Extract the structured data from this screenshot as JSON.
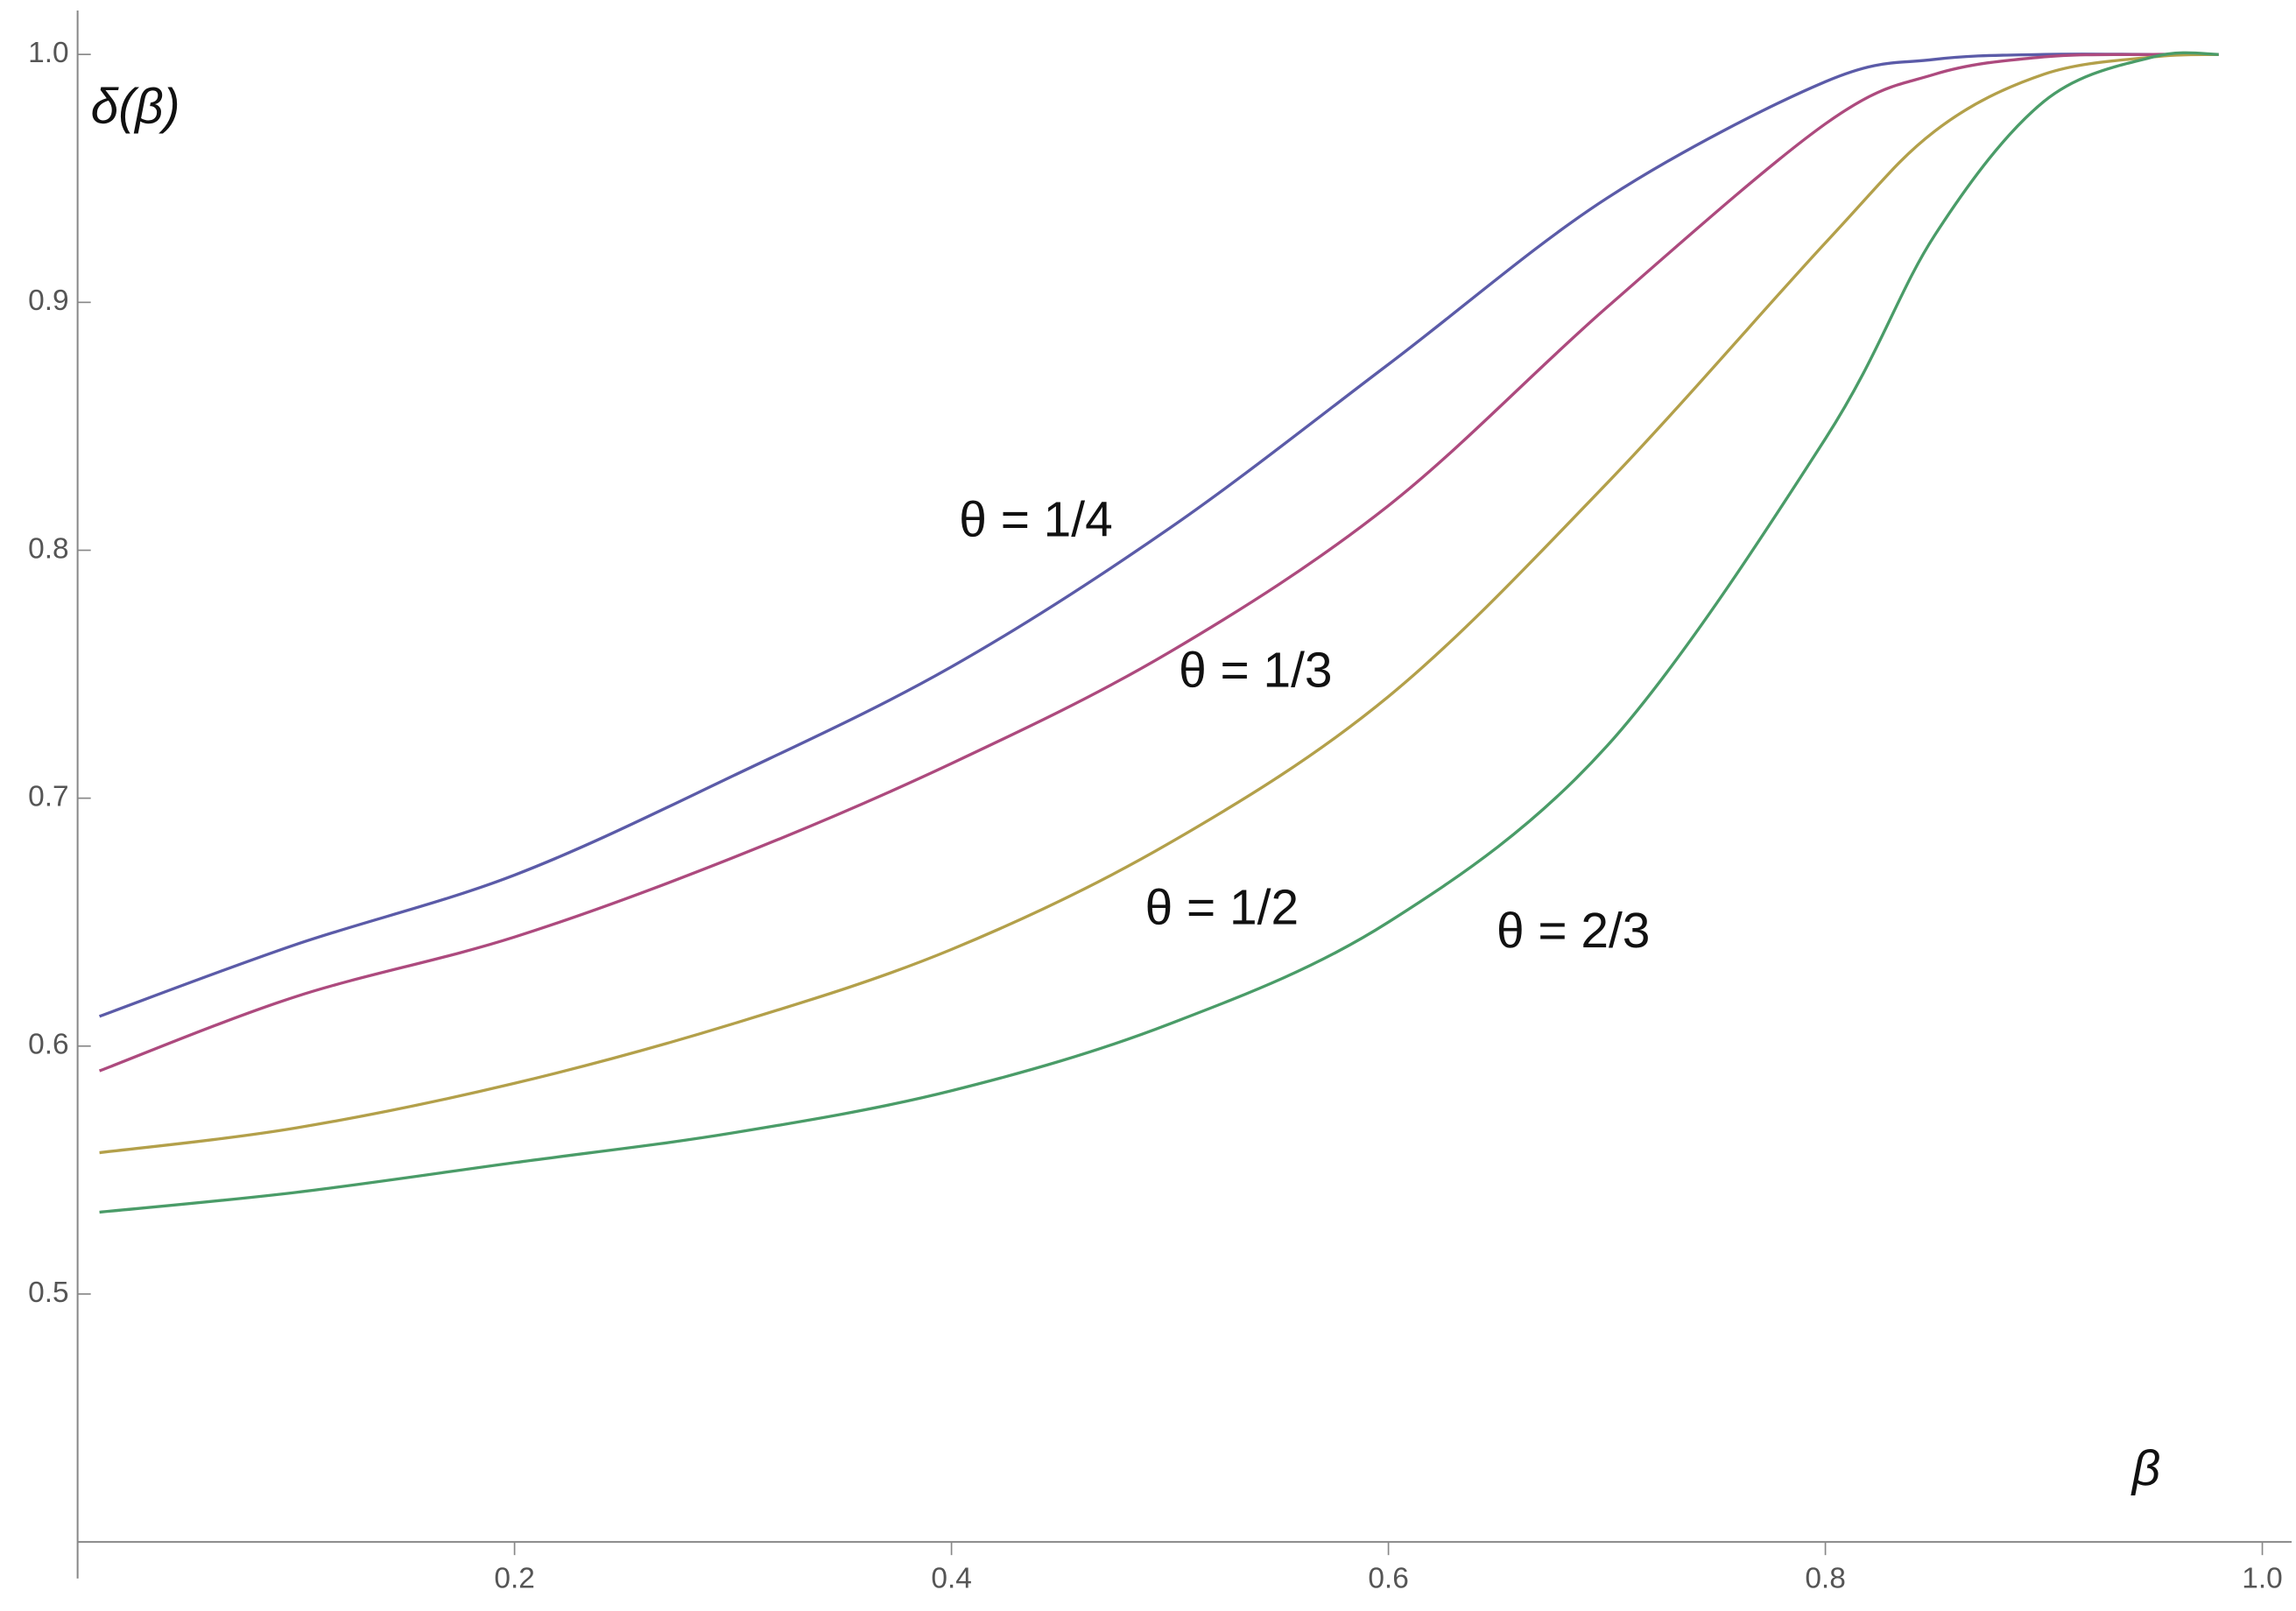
{
  "chart_data": {
    "type": "line",
    "x_label": "β",
    "y_label": "δ(β)",
    "x": [
      0.01,
      0.1,
      0.2,
      0.3,
      0.4,
      0.5,
      0.6,
      0.7,
      0.8,
      0.85,
      0.9,
      0.95,
      0.98
    ],
    "series": [
      {
        "name": "θ = 1/4",
        "color": "#5b5ba8",
        "values": [
          0.612,
          0.641,
          0.669,
          0.709,
          0.753,
          0.809,
          0.875,
          0.942,
          0.989,
          0.998,
          1.0,
          1.0,
          1.0
        ]
      },
      {
        "name": "θ = 1/3",
        "color": "#ad4a7e",
        "values": [
          0.59,
          0.62,
          0.644,
          0.676,
          0.714,
          0.759,
          0.818,
          0.898,
          0.972,
          0.992,
          0.999,
          1.0,
          1.0
        ]
      },
      {
        "name": "θ = 1/2",
        "color": "#b3a04a",
        "values": [
          0.557,
          0.567,
          0.585,
          0.609,
          0.639,
          0.682,
          0.741,
          0.827,
          0.924,
          0.969,
          0.992,
          0.999,
          1.0
        ]
      },
      {
        "name": "θ = 2/3",
        "color": "#4a9c68",
        "values": [
          0.533,
          0.541,
          0.553,
          0.565,
          0.582,
          0.609,
          0.65,
          0.721,
          0.845,
          0.927,
          0.981,
          0.999,
          1.0
        ]
      }
    ],
    "xlim": [
      0,
      1
    ],
    "ylim": [
      0.4,
      1.0
    ],
    "xticks": [
      0.2,
      0.4,
      0.6,
      0.8,
      {
        "value": 1,
        "label": "1.0"
      }
    ],
    "yticks": [
      0.5,
      0.6,
      0.7,
      0.8,
      0.9,
      {
        "value": 1,
        "label": "1.0"
      }
    ]
  }
}
